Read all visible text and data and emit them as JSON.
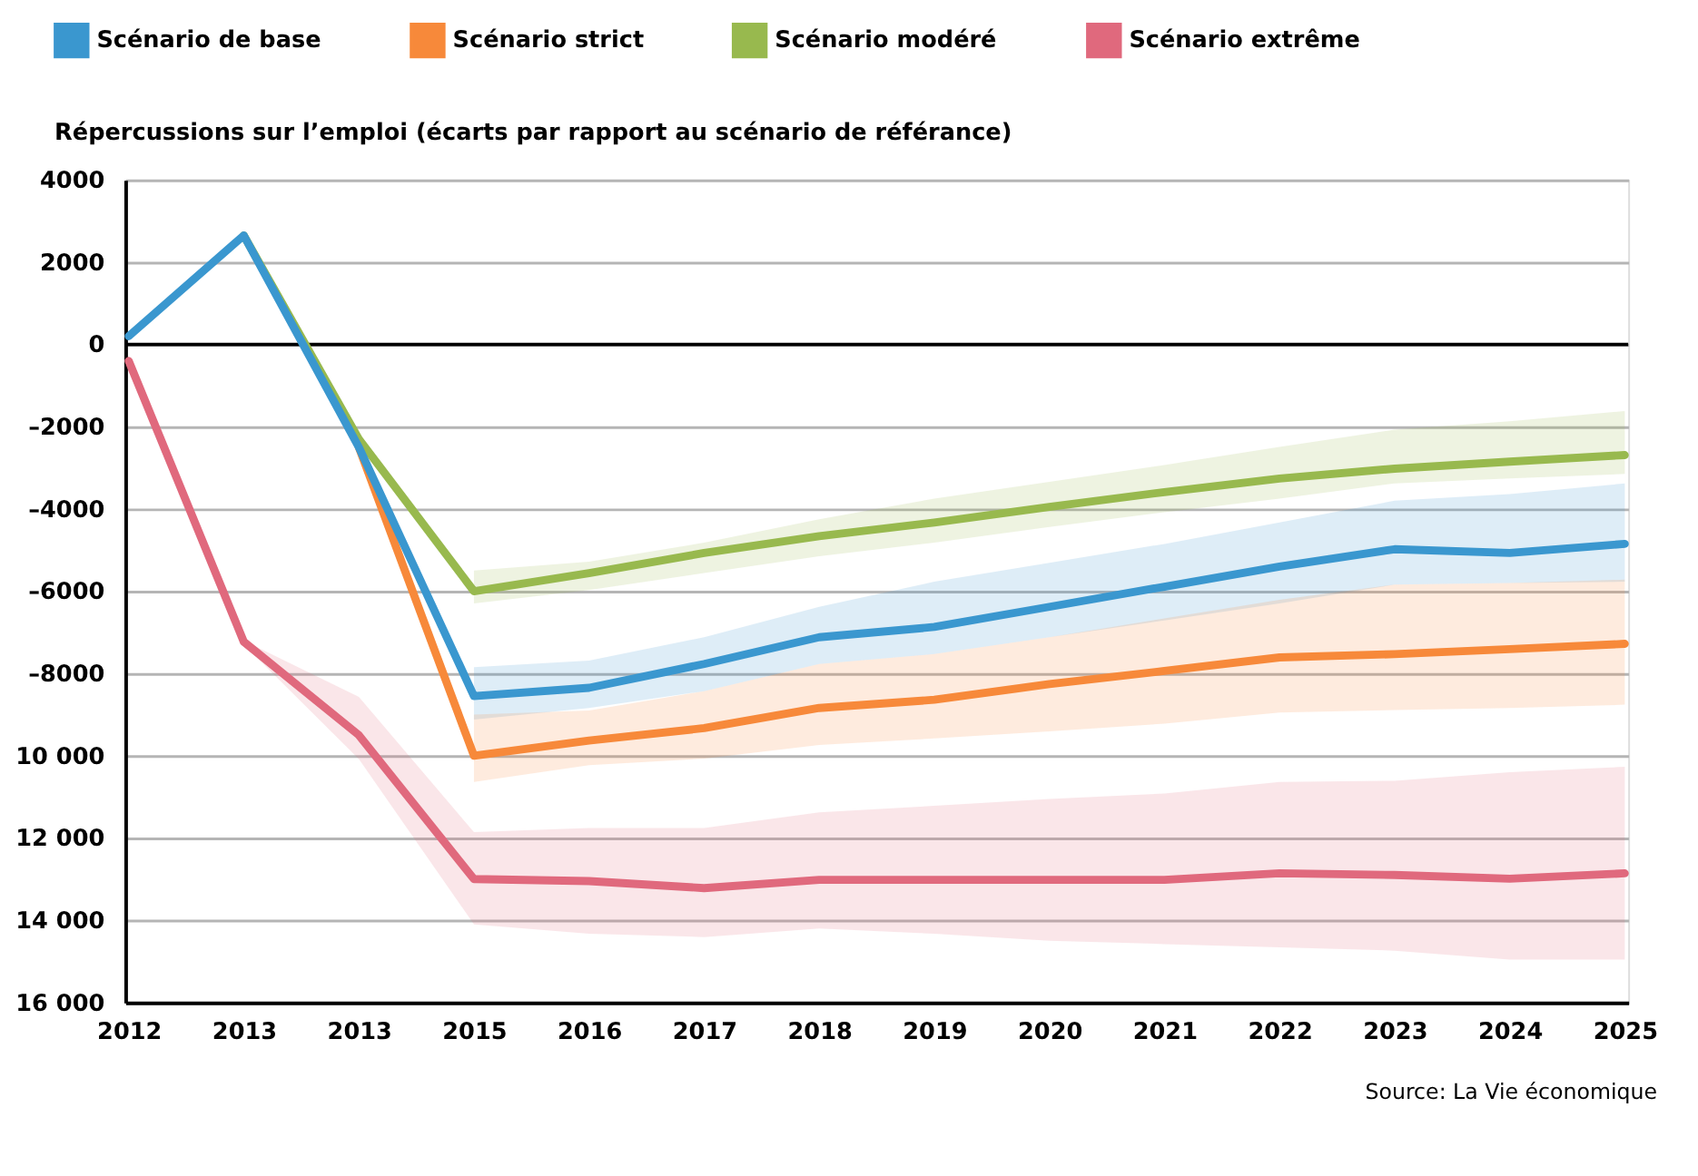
{
  "chart_data": {
    "type": "line",
    "ylabel": "Répercussions sur l’emploi (écarts par rapport au scénario de référance)",
    "categories": [
      "2012",
      "2013",
      "2013",
      "2015",
      "2016",
      "2017",
      "2018",
      "2019",
      "2020",
      "2021",
      "2022",
      "2023",
      "2024",
      "2025"
    ],
    "series": [
      {
        "name": "Scénario de base",
        "color": "#3a97cf",
        "values": [
          200,
          2650,
          -2500,
          -8550,
          -8350,
          -7770,
          -7120,
          -6870,
          -6380,
          -5890,
          -5400,
          -4980,
          -5070,
          -4850
        ],
        "lower": [
          null,
          null,
          null,
          -9120,
          -8840,
          -8430,
          -7770,
          -7530,
          -7120,
          -6710,
          -6300,
          -5840,
          -5800,
          -5770
        ],
        "upper": [
          null,
          null,
          null,
          -7850,
          -7690,
          -7120,
          -6380,
          -5770,
          -5310,
          -4850,
          -4330,
          -3800,
          -3640,
          -3380
        ]
      },
      {
        "name": "Scénario strict",
        "color": "#f7893a",
        "values": [
          null,
          null,
          -2500,
          -10000,
          -9630,
          -9330,
          -8840,
          -8640,
          -8260,
          -7940,
          -7610,
          -7530,
          -7410,
          -7280
        ],
        "lower": [
          null,
          null,
          null,
          -10640,
          -10230,
          -10070,
          -9740,
          -9580,
          -9410,
          -9220,
          -8950,
          -8890,
          -8840,
          -8760
        ],
        "upper": [
          null,
          null,
          null,
          -9000,
          -8900,
          -8430,
          -7770,
          -7530,
          -7120,
          -6660,
          -6210,
          -5840,
          -5800,
          -5720
        ]
      },
      {
        "name": "Scénario modéré",
        "color": "#98b94e",
        "values": [
          null,
          2650,
          -2300,
          -6000,
          -5560,
          -5070,
          -4660,
          -4330,
          -3950,
          -3590,
          -3260,
          -3020,
          -2850,
          -2690
        ],
        "lower": [
          null,
          null,
          null,
          -6300,
          -5970,
          -5560,
          -5150,
          -4820,
          -4440,
          -4080,
          -3750,
          -3380,
          -3260,
          -3150
        ],
        "upper": [
          null,
          null,
          null,
          -5500,
          -5280,
          -4820,
          -4250,
          -3750,
          -3340,
          -2930,
          -2490,
          -2070,
          -1870,
          -1620
        ]
      },
      {
        "name": "Scénario extrême",
        "color": "#e0697d",
        "values": [
          -400,
          -7230,
          -9500,
          -13000,
          -13050,
          -13220,
          -13020,
          -13020,
          -13020,
          -13020,
          -12860,
          -12900,
          -12990,
          -12860
        ],
        "lower": [
          null,
          -7300,
          -10080,
          -14100,
          -14330,
          -14410,
          -14200,
          -14330,
          -14500,
          -14580,
          -14660,
          -14740,
          -14960,
          -14960
        ],
        "upper": [
          null,
          -7200,
          -8570,
          -11860,
          -11760,
          -11760,
          -11380,
          -11220,
          -11050,
          -10920,
          -10640,
          -10610,
          -10400,
          -10270
        ]
      }
    ],
    "ylim": [
      -16000,
      4000
    ],
    "yticks": [
      4000,
      2000,
      0,
      {
        "value": -2000,
        "label": "–2000"
      },
      {
        "value": -4000,
        "label": "–4000"
      },
      {
        "value": -6000,
        "label": "–6000"
      },
      {
        "value": -8000,
        "label": "–8000"
      },
      {
        "value": -10000,
        "label": "10 000"
      },
      {
        "value": -12000,
        "label": "12 000"
      },
      {
        "value": -14000,
        "label": "14 000"
      },
      {
        "value": -16000,
        "label": "16 000"
      }
    ],
    "ref_lines": [
      {
        "axis": "y",
        "value": 0,
        "color": "#000000"
      }
    ],
    "grid": "y",
    "legend": "top left",
    "line_style": "solid",
    "marker": "none",
    "annotations": [
      "Source: La Vie économique"
    ]
  }
}
